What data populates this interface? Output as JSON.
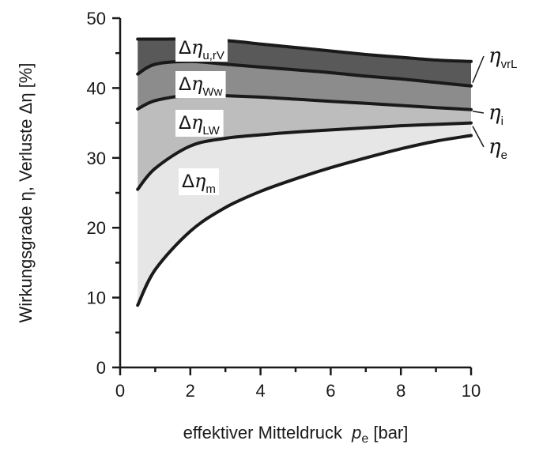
{
  "chart_data": {
    "type": "area",
    "xlabel": "effektiver Mitteldruck",
    "xlabel_symbol": "p",
    "xlabel_sub": "e",
    "xlabel_unit": " [bar]",
    "ylabel": "Wirkungsgrade η, Verluste Δη [%]",
    "xlim": [
      0,
      10
    ],
    "ylim": [
      0,
      50
    ],
    "xticks": [
      0,
      2,
      4,
      6,
      8,
      10
    ],
    "yticks": [
      0,
      10,
      20,
      30,
      40,
      50
    ],
    "grid": false,
    "x": [
      0.5,
      1,
      2,
      3,
      4,
      5,
      6,
      7,
      8,
      9,
      10
    ],
    "series": [
      {
        "id": "top",
        "name": "",
        "values": [
          47.0,
          47.0,
          47.0,
          46.8,
          46.3,
          45.8,
          45.3,
          44.8,
          44.4,
          44.0,
          43.8
        ]
      },
      {
        "id": "vrL",
        "name": "ηvrL",
        "values": [
          42.0,
          43.4,
          43.8,
          43.4,
          43.0,
          42.6,
          42.2,
          41.7,
          41.3,
          40.8,
          40.3
        ]
      },
      {
        "id": "i",
        "name": "ηi",
        "values": [
          37.0,
          38.2,
          39.0,
          38.9,
          38.7,
          38.4,
          38.1,
          37.8,
          37.5,
          37.2,
          36.9
        ]
      },
      {
        "id": "e",
        "name": "ηe",
        "values": [
          25.5,
          28.5,
          31.7,
          32.8,
          33.3,
          33.7,
          34.0,
          34.3,
          34.6,
          34.8,
          35.0
        ]
      },
      {
        "id": "m",
        "name": "",
        "values": [
          8.9,
          14.0,
          19.5,
          22.9,
          25.2,
          27.0,
          28.6,
          30.0,
          31.3,
          32.4,
          33.2
        ]
      }
    ],
    "bands": [
      {
        "label": "Δη",
        "sub": "u,rV",
        "upper": "top",
        "lower": "vrL",
        "color": "#595959"
      },
      {
        "label": "Δη",
        "sub": "Ww",
        "upper": "vrL",
        "lower": "i",
        "color": "#8c8c8c"
      },
      {
        "label": "Δη",
        "sub": "LW",
        "upper": "i",
        "lower": "e",
        "color": "#bdbdbd"
      },
      {
        "label": "Δη",
        "sub": "m",
        "upper": "e",
        "lower": "m",
        "color": "#e6e6e6"
      }
    ],
    "right_labels": [
      {
        "symbol": "η",
        "sub": "vrL"
      },
      {
        "symbol": "η",
        "sub": "i"
      },
      {
        "symbol": "η",
        "sub": "e"
      }
    ]
  }
}
